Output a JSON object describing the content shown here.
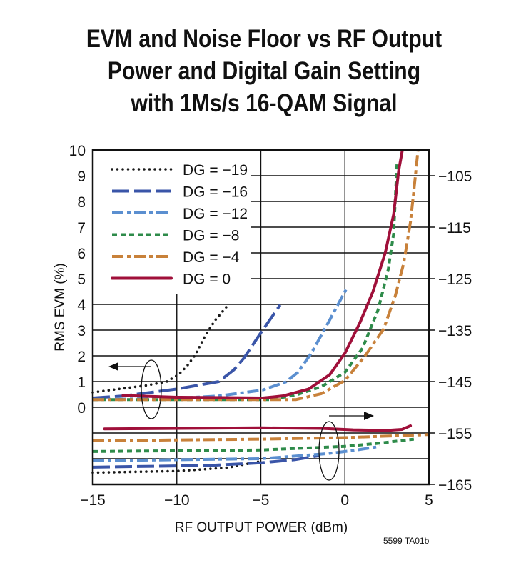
{
  "chart_data": {
    "type": "line",
    "title": [
      "EVM and Noise Floor vs RF Output",
      "Power and Digital Gain Setting",
      "with 1Ms/s 16-QAM Signal"
    ],
    "xlabel": "RF OUTPUT POWER (dBm)",
    "ylabel": "RMS EVM (%)",
    "ylabel_right": "",
    "xlim": [
      -15,
      5
    ],
    "ylim": [
      -3,
      10
    ],
    "ylim_right": [
      -165,
      -100
    ],
    "x_ticks": [
      "−15",
      "−10",
      "−5",
      "0",
      "5"
    ],
    "y_ticks": [
      "0",
      "1",
      "2",
      "3",
      "4",
      "5",
      "6",
      "7",
      "8",
      "9",
      "10"
    ],
    "y_right_ticks": [
      "−105",
      "−115",
      "−125",
      "−135",
      "−145",
      "−155",
      "−165"
    ],
    "grid": true,
    "legend_position": "top-left",
    "series": [
      {
        "name": "DG = −19",
        "color": "#1a1a1a",
        "style": "dotted",
        "evm": [
          [
            -15,
            0.58
          ],
          [
            -13,
            0.75
          ],
          [
            -11.8,
            0.85
          ],
          [
            -10.6,
            1.0
          ],
          [
            -9.9,
            1.27
          ],
          [
            -9.4,
            1.6
          ],
          [
            -8.9,
            2.04
          ],
          [
            -8.3,
            2.8
          ],
          [
            -7.7,
            3.4
          ],
          [
            -7.05,
            3.9
          ]
        ],
        "noise_floor": [
          [
            -15,
            -162.7
          ],
          [
            -10,
            -162.4
          ],
          [
            -7,
            -161.75
          ],
          [
            -5,
            -160.5
          ]
        ]
      },
      {
        "name": "DG = −16",
        "color": "#3a55a8",
        "style": "long-dash",
        "evm": [
          [
            -15,
            0.36
          ],
          [
            -13.2,
            0.44
          ],
          [
            -10,
            0.71
          ],
          [
            -7.5,
            1.0
          ],
          [
            -6.6,
            1.46
          ],
          [
            -6,
            1.92
          ],
          [
            -5.05,
            2.85
          ],
          [
            -3.85,
            3.98
          ]
        ],
        "noise_floor": [
          [
            -15,
            -161.65
          ],
          [
            -8,
            -161.3
          ],
          [
            -5,
            -160.8
          ],
          [
            -3,
            -160.2
          ],
          [
            -1.5,
            -159.4
          ]
        ]
      },
      {
        "name": "DG = −12",
        "color": "#5b8fd0",
        "style": "dash-dot",
        "evm": [
          [
            -15,
            0.3
          ],
          [
            -10,
            0.35
          ],
          [
            -7.5,
            0.44
          ],
          [
            -4.9,
            0.67
          ],
          [
            -3.5,
            0.99
          ],
          [
            -2.8,
            1.36
          ],
          [
            -2,
            2.1
          ],
          [
            -0.9,
            3.4
          ],
          [
            0.06,
            4.57
          ]
        ],
        "noise_floor": [
          [
            -15,
            -160.4
          ],
          [
            -5,
            -160.0
          ],
          [
            -1,
            -159.0
          ],
          [
            0.5,
            -158.4
          ],
          [
            2.1,
            -157.6
          ]
        ]
      },
      {
        "name": "DG = −8",
        "color": "#2e8b4a",
        "style": "short-dash",
        "evm": [
          [
            -15,
            0.3
          ],
          [
            -10,
            0.3
          ],
          [
            -4.45,
            0.3
          ],
          [
            -2.9,
            0.48
          ],
          [
            -1.4,
            0.8
          ],
          [
            0,
            1.36
          ],
          [
            1.05,
            2.3
          ],
          [
            1.97,
            3.78
          ],
          [
            2.58,
            5.36
          ],
          [
            2.9,
            6.75
          ],
          [
            3.1,
            9.5
          ]
        ],
        "noise_floor": [
          [
            -15,
            -158.6
          ],
          [
            -5,
            -158.3
          ],
          [
            0,
            -157.6
          ],
          [
            2,
            -157.0
          ],
          [
            4.1,
            -156.2
          ]
        ]
      },
      {
        "name": "DG = −4",
        "color": "#c8813a",
        "style": "dash-dot",
        "evm": [
          [
            -15,
            0.3
          ],
          [
            -10,
            0.3
          ],
          [
            -2.9,
            0.3
          ],
          [
            -1.4,
            0.53
          ],
          [
            0,
            1.04
          ],
          [
            1.2,
            2.0
          ],
          [
            2.3,
            3.04
          ],
          [
            3.0,
            4.34
          ],
          [
            3.5,
            5.6
          ],
          [
            3.9,
            7.2
          ],
          [
            4.1,
            8.4
          ],
          [
            4.35,
            10
          ]
        ],
        "noise_floor": [
          [
            -15,
            -156.5
          ],
          [
            -5,
            -156.2
          ],
          [
            0,
            -155.9
          ],
          [
            5,
            -155.3
          ]
        ]
      },
      {
        "name": "DG = 0",
        "color": "#a0103a",
        "style": "solid",
        "evm": [
          [
            -13.2,
            0.46
          ],
          [
            -10,
            0.39
          ],
          [
            -4.9,
            0.36
          ],
          [
            -3.7,
            0.44
          ],
          [
            -2.15,
            0.71
          ],
          [
            -0.9,
            1.27
          ],
          [
            0,
            2.1
          ],
          [
            0.9,
            3.3
          ],
          [
            1.67,
            4.5
          ],
          [
            2.4,
            6.0
          ],
          [
            2.9,
            7.5
          ],
          [
            3.2,
            9.2
          ],
          [
            3.42,
            10
          ]
        ],
        "noise_floor": [
          [
            -14.3,
            -154.2
          ],
          [
            -5,
            -154.0
          ],
          [
            -1.4,
            -154.1
          ],
          [
            0.5,
            -154.4
          ],
          [
            2.5,
            -154.5
          ],
          [
            3.4,
            -154.3
          ],
          [
            3.9,
            -153.6
          ]
        ]
      }
    ]
  },
  "footnote": "5599 TA01b"
}
